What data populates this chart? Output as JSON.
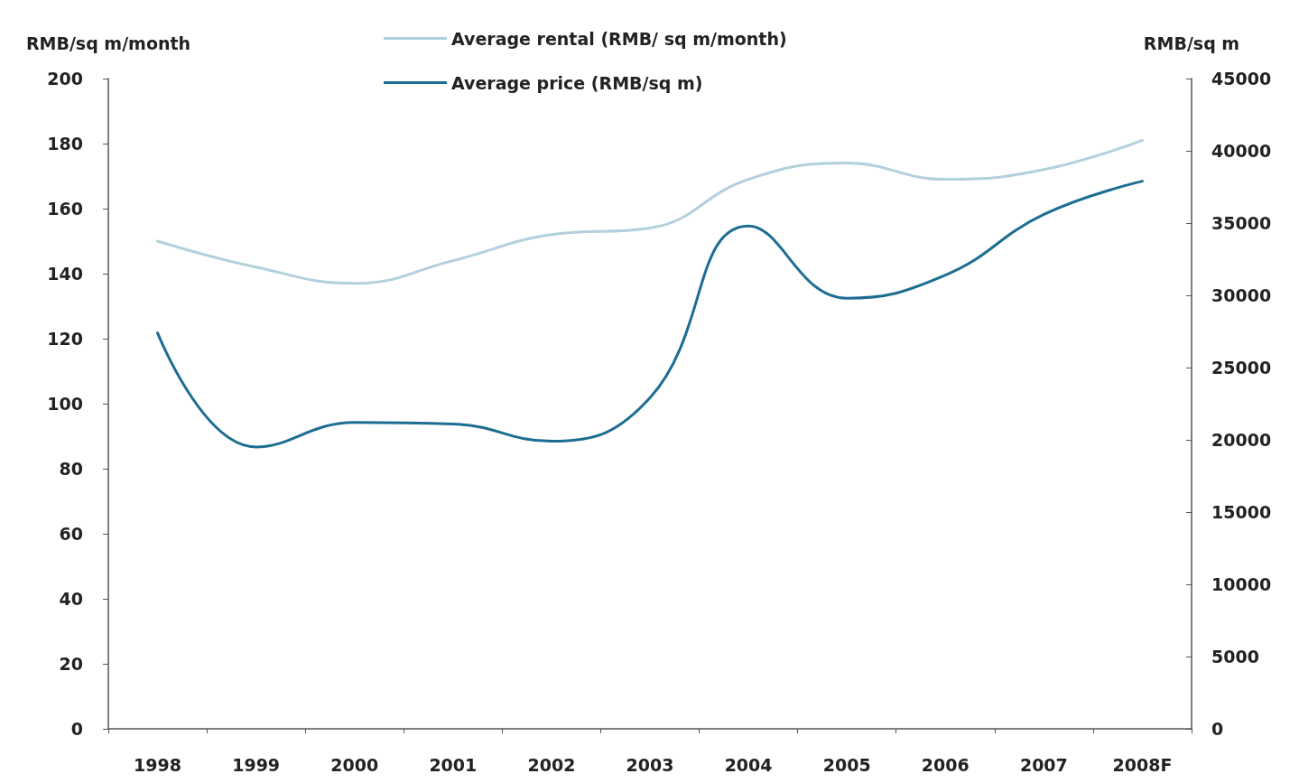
{
  "chart_data": {
    "type": "line",
    "ylabel": "RMB/sq m/month",
    "y2label": "RMB/sq m",
    "categories": [
      "1998",
      "1999",
      "2000",
      "2001",
      "2002",
      "2003",
      "2004",
      "2005",
      "2006",
      "2007",
      "2008F"
    ],
    "series": [
      {
        "name": "Average rental (RMB/ sq m/month)",
        "color": "#b3d0dd",
        "values": [
          150,
          142,
          137,
          144,
          152,
          154,
          169,
          174,
          169,
          172,
          181
        ]
      },
      {
        "name": "Average price (RMB/sq m)",
        "color": "#1d6d92",
        "axis": "y2",
        "values": [
          27400,
          19500,
          21200,
          21100,
          19900,
          22900,
          34800,
          29800,
          31400,
          35600,
          37900
        ]
      }
    ],
    "ylim": [
      0,
      200
    ],
    "yticks": [
      0,
      20,
      40,
      60,
      80,
      100,
      120,
      140,
      160,
      180,
      200
    ],
    "y2lim": [
      0,
      45000
    ],
    "y2ticks": [
      0,
      5000,
      10000,
      15000,
      20000,
      25000,
      30000,
      35000,
      40000,
      45000
    ],
    "grid": false,
    "legend": "top",
    "marker": "none",
    "line_style": "solid"
  }
}
